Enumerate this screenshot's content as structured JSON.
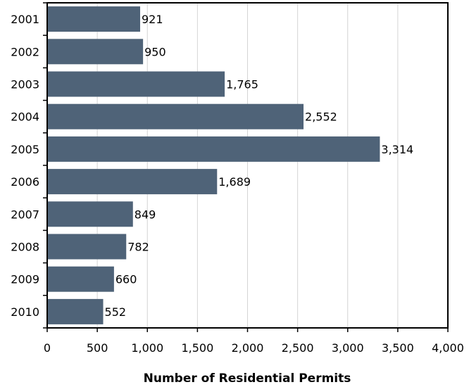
{
  "chart_data": {
    "type": "bar",
    "orientation": "horizontal",
    "categories": [
      "2001",
      "2002",
      "2003",
      "2004",
      "2005",
      "2006",
      "2007",
      "2008",
      "2009",
      "2010"
    ],
    "values": [
      921,
      950,
      1765,
      2552,
      3314,
      1689,
      849,
      782,
      660,
      552
    ],
    "data_labels": [
      "921",
      "950",
      "1,765",
      "2,552",
      "3,314",
      "1,689",
      "849",
      "782",
      "660",
      "552"
    ],
    "xlabel": "Number of Residential Permits",
    "ylabel": "",
    "xlim": [
      0,
      4000
    ],
    "x_ticks": [
      0,
      500,
      1000,
      1500,
      2000,
      2500,
      3000,
      3500,
      4000
    ],
    "x_tick_labels": [
      "0",
      "500",
      "1,000",
      "1,500",
      "2,000",
      "2,500",
      "3,000",
      "3,500",
      "4,000"
    ],
    "grid": "vertical",
    "bar_color": "#4f6378"
  }
}
